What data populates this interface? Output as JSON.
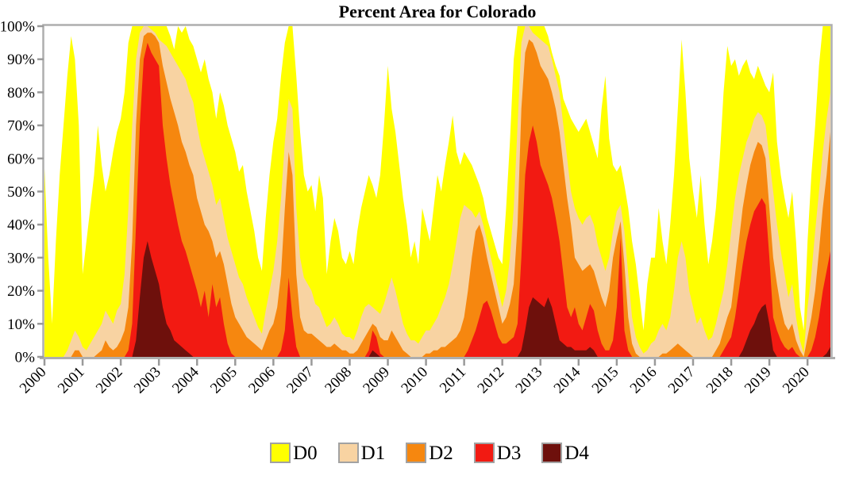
{
  "title": "Percent Area for Colorado",
  "chart_data": {
    "type": "area",
    "title": "Percent Area for Colorado",
    "value_semantics": "stacked cumulative percent of state area in drought category Dn or worse; D0 is total, each higher category drawn on top",
    "x_start": 2000.0,
    "x_step": 0.1,
    "x_end": 2020.6,
    "ylim": [
      0,
      100
    ],
    "grid": false,
    "legend_position": "bottom-center",
    "x_ticks": [
      2000,
      2001,
      2002,
      2003,
      2004,
      2005,
      2006,
      2007,
      2008,
      2009,
      2010,
      2011,
      2012,
      2013,
      2014,
      2015,
      2016,
      2017,
      2018,
      2019,
      2020
    ],
    "y_tick_labels": [
      "0%",
      "10%",
      "20%",
      "30%",
      "40%",
      "50%",
      "60%",
      "70%",
      "80%",
      "90%",
      "100%"
    ],
    "series": [
      {
        "name": "D0",
        "color": "#FFFF00",
        "values": [
          57,
          30,
          10,
          35,
          55,
          70,
          85,
          97,
          90,
          70,
          25,
          35,
          45,
          55,
          70,
          58,
          50,
          55,
          62,
          68,
          72,
          80,
          95,
          100,
          100,
          100,
          100,
          100,
          100,
          100,
          100,
          100,
          100,
          97,
          93,
          100,
          98,
          100,
          96,
          94,
          90,
          86,
          90,
          84,
          80,
          72,
          80,
          76,
          70,
          66,
          62,
          56,
          58,
          50,
          44,
          38,
          30,
          26,
          42,
          55,
          65,
          72,
          85,
          95,
          100,
          100,
          85,
          68,
          55,
          50,
          52,
          44,
          55,
          48,
          25,
          35,
          42,
          38,
          30,
          28,
          32,
          28,
          38,
          45,
          50,
          55,
          52,
          48,
          55,
          70,
          88,
          75,
          68,
          58,
          48,
          40,
          30,
          35,
          28,
          45,
          40,
          35,
          45,
          55,
          50,
          58,
          65,
          73,
          62,
          58,
          62,
          60,
          58,
          55,
          52,
          48,
          42,
          38,
          34,
          30,
          28,
          45,
          65,
          90,
          100,
          100,
          100,
          100,
          100,
          100,
          100,
          100,
          97,
          92,
          88,
          85,
          78,
          75,
          72,
          70,
          68,
          70,
          72,
          68,
          64,
          60,
          75,
          85,
          66,
          58,
          56,
          58,
          52,
          45,
          35,
          28,
          18,
          8,
          22,
          30,
          30,
          45,
          35,
          28,
          40,
          55,
          75,
          96,
          80,
          60,
          50,
          42,
          55,
          40,
          28,
          35,
          45,
          60,
          80,
          94,
          88,
          90,
          85,
          88,
          90,
          86,
          84,
          88,
          85,
          82,
          80,
          86,
          65,
          55,
          48,
          42,
          50,
          35,
          15,
          8,
          35,
          55,
          70,
          88,
          100,
          100,
          100
        ]
      },
      {
        "name": "D1",
        "color": "#F8D3A2",
        "values": [
          0,
          0,
          0,
          0,
          0,
          0,
          2,
          5,
          8,
          6,
          3,
          2,
          4,
          6,
          8,
          10,
          14,
          12,
          10,
          14,
          16,
          25,
          45,
          70,
          90,
          98,
          100,
          100,
          99,
          98,
          96,
          95,
          94,
          92,
          90,
          88,
          86,
          84,
          80,
          77,
          70,
          64,
          60,
          56,
          52,
          46,
          48,
          42,
          36,
          32,
          28,
          24,
          22,
          18,
          15,
          12,
          9,
          7,
          14,
          20,
          26,
          35,
          48,
          65,
          78,
          75,
          45,
          30,
          24,
          22,
          20,
          16,
          15,
          12,
          9,
          10,
          12,
          10,
          7,
          6,
          6,
          5,
          8,
          12,
          15,
          16,
          15,
          14,
          13,
          16,
          20,
          24,
          20,
          15,
          10,
          7,
          5,
          5,
          4,
          6,
          8,
          8,
          10,
          12,
          15,
          18,
          22,
          28,
          35,
          42,
          46,
          45,
          44,
          42,
          44,
          40,
          35,
          30,
          25,
          20,
          15,
          20,
          30,
          45,
          70,
          95,
          100,
          100,
          98,
          97,
          96,
          95,
          94,
          90,
          85,
          80,
          70,
          60,
          50,
          45,
          42,
          40,
          42,
          43,
          40,
          34,
          30,
          26,
          30,
          38,
          44,
          46,
          38,
          25,
          12,
          6,
          3,
          1,
          2,
          4,
          5,
          8,
          10,
          8,
          12,
          20,
          30,
          35,
          30,
          20,
          15,
          10,
          12,
          8,
          5,
          6,
          10,
          15,
          20,
          28,
          38,
          48,
          55,
          60,
          65,
          68,
          72,
          74,
          73,
          70,
          60,
          50,
          40,
          32,
          25,
          18,
          22,
          12,
          5,
          1,
          15,
          25,
          38,
          50,
          62,
          72,
          80
        ]
      },
      {
        "name": "D2",
        "color": "#F6870F",
        "values": [
          0,
          0,
          0,
          0,
          0,
          0,
          0,
          0,
          2,
          2,
          0,
          0,
          0,
          0,
          1,
          2,
          5,
          3,
          2,
          3,
          5,
          8,
          15,
          35,
          70,
          90,
          97,
          98,
          98,
          97,
          95,
          88,
          83,
          78,
          74,
          70,
          65,
          62,
          58,
          55,
          48,
          44,
          40,
          38,
          35,
          30,
          32,
          28,
          22,
          16,
          12,
          10,
          8,
          6,
          5,
          4,
          3,
          2,
          5,
          8,
          10,
          15,
          25,
          45,
          62,
          55,
          25,
          12,
          8,
          7,
          7,
          6,
          5,
          4,
          3,
          3,
          4,
          3,
          2,
          2,
          1,
          1,
          2,
          4,
          6,
          8,
          10,
          9,
          6,
          5,
          5,
          8,
          6,
          4,
          2,
          1,
          0,
          0,
          0,
          0,
          1,
          1,
          2,
          2,
          3,
          3,
          4,
          5,
          6,
          8,
          12,
          20,
          30,
          38,
          40,
          36,
          30,
          25,
          20,
          15,
          10,
          12,
          16,
          22,
          40,
          75,
          92,
          96,
          95,
          92,
          88,
          86,
          84,
          80,
          75,
          68,
          58,
          48,
          40,
          30,
          28,
          26,
          27,
          28,
          26,
          22,
          18,
          15,
          20,
          30,
          36,
          41,
          28,
          12,
          4,
          1,
          0,
          0,
          0,
          0,
          0,
          0,
          1,
          1,
          2,
          3,
          4,
          3,
          2,
          1,
          0,
          0,
          0,
          0,
          0,
          0,
          2,
          4,
          8,
          12,
          15,
          25,
          35,
          45,
          52,
          58,
          62,
          65,
          64,
          60,
          45,
          30,
          22,
          15,
          10,
          8,
          10,
          5,
          2,
          0,
          6,
          12,
          20,
          32,
          45,
          55,
          68
        ]
      },
      {
        "name": "D3",
        "color": "#F21A12",
        "values": [
          0,
          0,
          0,
          0,
          0,
          0,
          0,
          0,
          0,
          0,
          0,
          0,
          0,
          0,
          0,
          0,
          0,
          0,
          0,
          0,
          0,
          0,
          2,
          10,
          40,
          70,
          90,
          95,
          92,
          90,
          88,
          70,
          60,
          52,
          46,
          40,
          35,
          32,
          28,
          24,
          20,
          15,
          20,
          12,
          22,
          15,
          18,
          10,
          4,
          1,
          0,
          0,
          0,
          0,
          0,
          0,
          0,
          0,
          0,
          0,
          0,
          0,
          2,
          8,
          24,
          12,
          3,
          0,
          0,
          0,
          0,
          0,
          0,
          0,
          0,
          0,
          0,
          0,
          0,
          0,
          0,
          0,
          0,
          0,
          0,
          2,
          8,
          6,
          1,
          0,
          0,
          0,
          0,
          0,
          0,
          0,
          0,
          0,
          0,
          0,
          0,
          0,
          0,
          0,
          0,
          0,
          0,
          0,
          0,
          0,
          0,
          2,
          5,
          8,
          12,
          16,
          17,
          14,
          10,
          6,
          4,
          4,
          5,
          6,
          10,
          30,
          55,
          65,
          70,
          65,
          58,
          55,
          52,
          48,
          42,
          35,
          25,
          15,
          12,
          15,
          10,
          8,
          12,
          16,
          14,
          8,
          4,
          2,
          2,
          5,
          15,
          36,
          8,
          2,
          0,
          0,
          0,
          0,
          0,
          0,
          0,
          0,
          0,
          0,
          0,
          0,
          0,
          0,
          0,
          0,
          0,
          0,
          0,
          0,
          0,
          0,
          0,
          0,
          2,
          4,
          6,
          12,
          20,
          28,
          35,
          40,
          44,
          46,
          48,
          46,
          30,
          12,
          8,
          5,
          3,
          2,
          3,
          1,
          0,
          0,
          0,
          2,
          6,
          12,
          20,
          26,
          32
        ]
      },
      {
        "name": "D4",
        "color": "#6E100C",
        "values": [
          0,
          0,
          0,
          0,
          0,
          0,
          0,
          0,
          0,
          0,
          0,
          0,
          0,
          0,
          0,
          0,
          0,
          0,
          0,
          0,
          0,
          0,
          0,
          0,
          5,
          18,
          30,
          35,
          30,
          26,
          22,
          15,
          10,
          8,
          5,
          4,
          3,
          2,
          1,
          0,
          0,
          0,
          0,
          0,
          0,
          0,
          0,
          0,
          0,
          0,
          0,
          0,
          0,
          0,
          0,
          0,
          0,
          0,
          0,
          0,
          0,
          0,
          0,
          0,
          0,
          0,
          0,
          0,
          0,
          0,
          0,
          0,
          0,
          0,
          0,
          0,
          0,
          0,
          0,
          0,
          0,
          0,
          0,
          0,
          0,
          0,
          2,
          1,
          0,
          0,
          0,
          0,
          0,
          0,
          0,
          0,
          0,
          0,
          0,
          0,
          0,
          0,
          0,
          0,
          0,
          0,
          0,
          0,
          0,
          0,
          0,
          0,
          0,
          0,
          0,
          0,
          0,
          0,
          0,
          0,
          0,
          0,
          0,
          0,
          0,
          2,
          8,
          15,
          18,
          17,
          16,
          15,
          18,
          15,
          10,
          5,
          4,
          3,
          3,
          2,
          2,
          2,
          2,
          3,
          2,
          0,
          0,
          0,
          0,
          0,
          0,
          0,
          0,
          0,
          0,
          0,
          0,
          0,
          0,
          0,
          0,
          0,
          0,
          0,
          0,
          0,
          0,
          0,
          0,
          0,
          0,
          0,
          0,
          0,
          0,
          0,
          0,
          0,
          0,
          0,
          0,
          0,
          0,
          2,
          5,
          8,
          10,
          13,
          15,
          16,
          10,
          2,
          0,
          0,
          0,
          0,
          0,
          0,
          0,
          0,
          0,
          0,
          0,
          0,
          0,
          1,
          3
        ]
      }
    ]
  },
  "legend": {
    "items": [
      {
        "label": "D0",
        "color": "#FFFF00"
      },
      {
        "label": "D1",
        "color": "#F8D3A2"
      },
      {
        "label": "D2",
        "color": "#F6870F"
      },
      {
        "label": "D3",
        "color": "#F21A12"
      },
      {
        "label": "D4",
        "color": "#6E100C"
      }
    ]
  },
  "colors": {
    "frame": "#aeaeae",
    "tick": "#9a9a9a",
    "text": "#000000",
    "background": "#ffffff"
  }
}
